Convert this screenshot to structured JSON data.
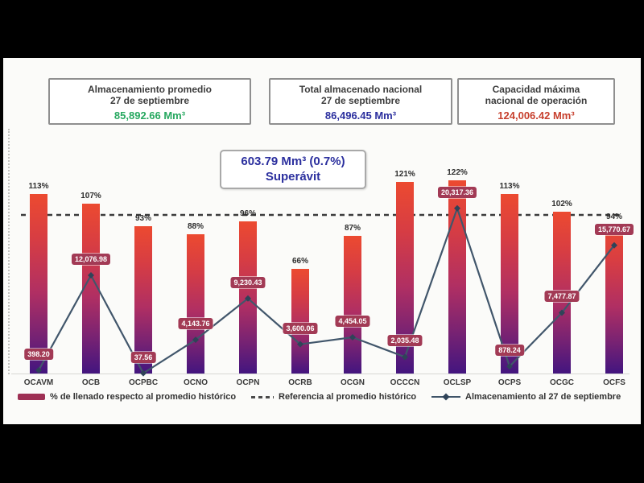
{
  "summary_boxes": [
    {
      "title_line1": "Almacenamiento promedio",
      "title_line2": "27 de septiembre",
      "value": "85,892.66 Mm³",
      "value_color": "#27a860"
    },
    {
      "title_line1": "Total almacenado nacional",
      "title_line2": "27 de septiembre",
      "value": "86,496.45 Mm³",
      "value_color": "#2b2f9e"
    },
    {
      "title_line1": "Capacidad máxima",
      "title_line2": "nacional de operación",
      "value": "124,006.42 Mm³",
      "value_color": "#c7402e"
    }
  ],
  "callout": {
    "line1": "603.79 Mm³ (0.7%)",
    "line2": "Superávit",
    "color": "#2b2f9e"
  },
  "legend": [
    {
      "label": "% de llenado respecto al promedio histórico",
      "marker": "bar-swatch",
      "color": "#9e3054"
    },
    {
      "label": "Referencia al promedio histórico",
      "marker": "dashed-line",
      "color": "#4a4a4a"
    },
    {
      "label": "Almacenamiento al 27 de septiembre",
      "marker": "line-with-diamond",
      "color": "#3f5468"
    }
  ],
  "chart_data": {
    "type": "bar",
    "subtype": "combo-bar-line",
    "categories": [
      "OCAVM",
      "OCB",
      "OCPBC",
      "OCNO",
      "OCPN",
      "OCRB",
      "OCGN",
      "OCCCN",
      "OCLSP",
      "OCPS",
      "OCGC",
      "OCFS"
    ],
    "series": [
      {
        "name": "% de llenado respecto al promedio histórico",
        "type": "bar",
        "unit": "%",
        "values": [
          113,
          107,
          93,
          88,
          96,
          66,
          87,
          121,
          122,
          113,
          102,
          94
        ],
        "labels": [
          "113%",
          "107%",
          "93%",
          "88%",
          "96%",
          "66%",
          "87%",
          "121%",
          "122%",
          "113%",
          "102%",
          "94%"
        ]
      },
      {
        "name": "Referencia al promedio histórico",
        "type": "reference-line",
        "unit": "%",
        "value": 100
      },
      {
        "name": "Almacenamiento al 27 de septiembre",
        "type": "line",
        "unit": "Mm³",
        "values": [
          398.2,
          12076.98,
          37.56,
          4143.76,
          9230.43,
          3600.06,
          4454.05,
          2035.48,
          20317.36,
          878.24,
          7477.87,
          15770.67
        ],
        "labels": [
          "398.20",
          "12,076.98",
          "37.56",
          "4,143.76",
          "9,230.43",
          "3,600.06",
          "4,454.05",
          "2,035.48",
          "20,317.36",
          "878.24",
          "7,477.87",
          "15,770.67"
        ]
      }
    ],
    "bar_axis_range": [
      0,
      130
    ],
    "line_axis_range": [
      0,
      22000
    ],
    "grid": false,
    "legend_position": "bottom",
    "colors": {
      "bar_top": "#ec4a30",
      "bar_bottom": "#43157f",
      "line": "#41566b",
      "value_label_bg": "#a23a55",
      "reference": "#3b3b3b"
    }
  }
}
